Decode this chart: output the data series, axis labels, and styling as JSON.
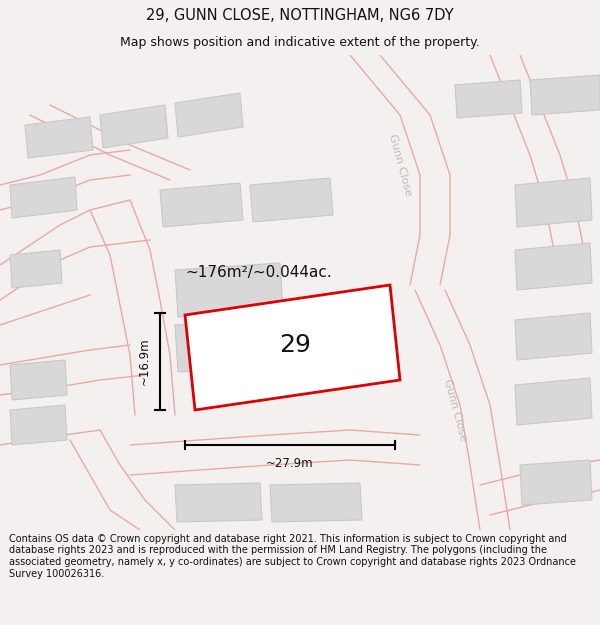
{
  "title": "29, GUNN CLOSE, NOTTINGHAM, NG6 7DY",
  "subtitle": "Map shows position and indicative extent of the property.",
  "footer": "Contains OS data © Crown copyright and database right 2021. This information is subject to Crown copyright and database rights 2023 and is reproduced with the permission of HM Land Registry. The polygons (including the associated geometry, namely x, y co-ordinates) are subject to Crown copyright and database rights 2023 Ordnance Survey 100026316.",
  "bg_color": "#f5f0f0",
  "map_bg": "#f5f0f0",
  "title_fontsize": 10.5,
  "subtitle_fontsize": 9,
  "footer_fontsize": 7.0,
  "property_label": "29",
  "area_label": "~176m²/~0.044ac.",
  "dim_width": "~27.9m",
  "dim_height": "~16.9m",
  "road_color": "#e8a8a8",
  "building_color": "#d8d8d8",
  "building_edge": "#c8c8c8",
  "property_color": "#dd0000",
  "dim_color": "#000000",
  "road_label_color": "#bbbbbb",
  "road_label1": "Gunn Close",
  "road_label2": "Gunn Close"
}
